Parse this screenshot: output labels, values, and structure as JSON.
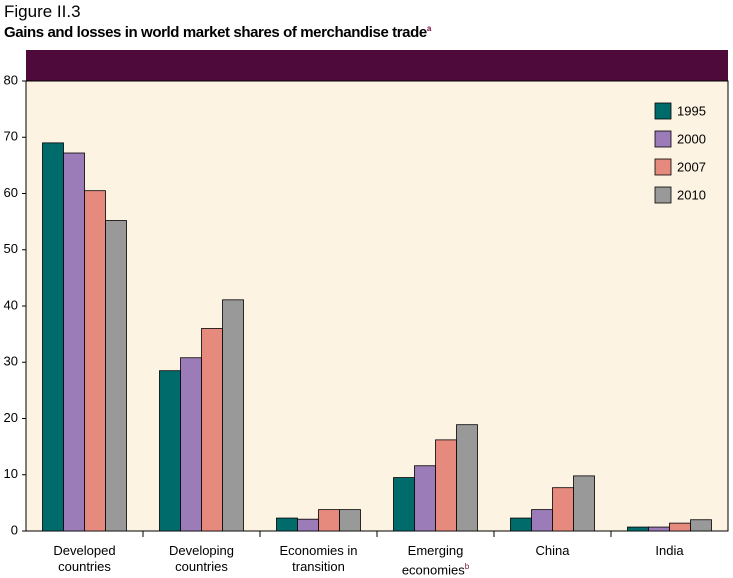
{
  "figure_label": "Figure II.3",
  "chart_data": {
    "type": "bar",
    "title": "Gains and losses in world market shares of merchandise trade",
    "title_superscript": "a",
    "categories": [
      "Developed countries",
      "Developing countries",
      "Economies in transition",
      "Emerging economies",
      "China",
      "India"
    ],
    "category_superscripts": [
      null,
      null,
      null,
      "b",
      null,
      null
    ],
    "series": [
      {
        "name": "1995",
        "color": "#006b6b",
        "values": [
          69,
          28.5,
          2.3,
          9.5,
          2.3,
          0.7
        ]
      },
      {
        "name": "2000",
        "color": "#9b7bb8",
        "values": [
          67.2,
          30.8,
          2.1,
          11.6,
          3.8,
          0.7
        ]
      },
      {
        "name": "2007",
        "color": "#e58a7c",
        "values": [
          60.5,
          36,
          3.8,
          16.2,
          7.7,
          1.4
        ]
      },
      {
        "name": "2010",
        "color": "#999999",
        "values": [
          55.2,
          41.1,
          3.8,
          18.9,
          9.8,
          2.0
        ]
      }
    ],
    "ylim": [
      0,
      80
    ],
    "yticks": [
      0,
      10,
      20,
      30,
      40,
      50,
      60,
      70,
      80
    ],
    "legend": "top-right"
  }
}
